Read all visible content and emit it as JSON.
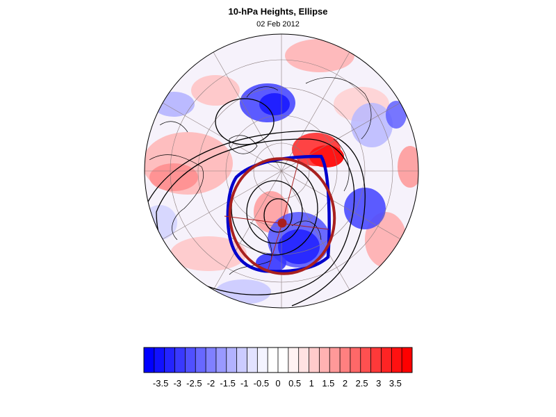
{
  "figure": {
    "title": "10-hPa Heights, Ellipse",
    "subtitle": "02 Feb 2012"
  },
  "map": {
    "projection": "polar stereographic (north pole)",
    "field": "10-hPa height anomaly",
    "positive_color": "#ff0000",
    "negative_color": "#0000ff",
    "ellipse_color": "#a8201f",
    "vortex_edge_color": "#0000cc",
    "contour_color": "#000000"
  },
  "colorbar": {
    "tick_labels": [
      "-3.5",
      "-3",
      "-2.5",
      "-2",
      "-1.5",
      "-1",
      "-0.5",
      "0",
      "0.5",
      "1",
      "1.5",
      "2",
      "2.5",
      "3",
      "3.5"
    ],
    "bin_colors": [
      "#0000ff",
      "#1111ff",
      "#2424ff",
      "#3939ff",
      "#5050ff",
      "#6868ff",
      "#8080ff",
      "#9999ff",
      "#b2b2ff",
      "#cbcbff",
      "#e2e2ff",
      "#f3f3ff",
      "#ffffff",
      "#ffffff",
      "#fff3f3",
      "#ffe2e2",
      "#ffcbcb",
      "#ffb2b2",
      "#ff9999",
      "#ff8080",
      "#ff6868",
      "#ff5050",
      "#ff3939",
      "#ff2424",
      "#ff1111",
      "#ff0000"
    ],
    "range": [
      -4,
      4
    ],
    "bin_width": 0.25
  }
}
